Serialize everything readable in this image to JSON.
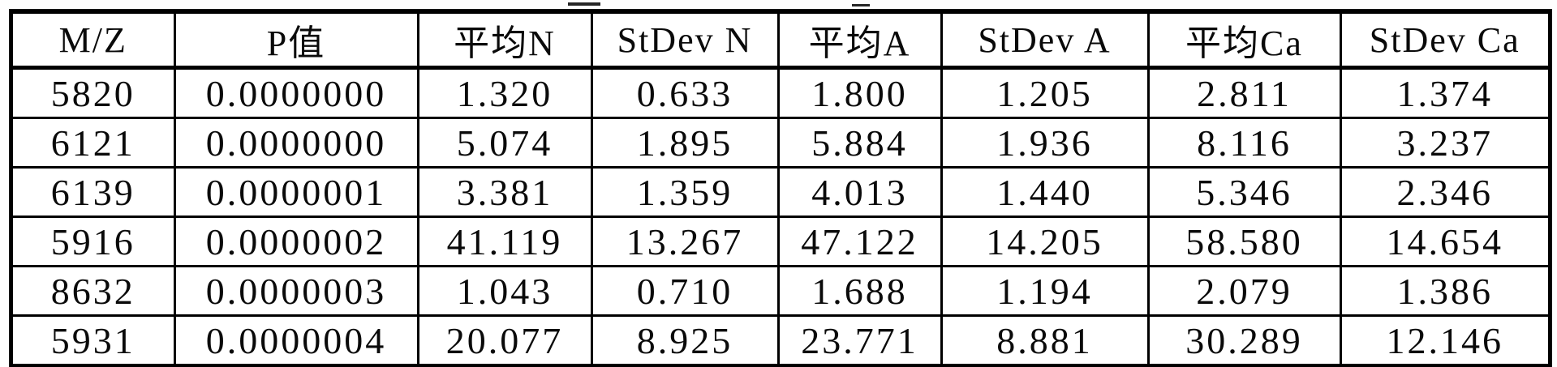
{
  "table": {
    "columns": [
      {
        "key": "mz",
        "label": "M/Z"
      },
      {
        "key": "p_value",
        "label": "P值"
      },
      {
        "key": "mean_n",
        "label": "平均N"
      },
      {
        "key": "stdev_n",
        "label": "StDev N"
      },
      {
        "key": "mean_a",
        "label": "平均A"
      },
      {
        "key": "stdev_a",
        "label": "StDev A"
      },
      {
        "key": "mean_ca",
        "label": "平均Ca"
      },
      {
        "key": "stdev_ca",
        "label": "StDev Ca"
      }
    ],
    "rows": [
      [
        "5820",
        "0.0000000",
        "1.320",
        "0.633",
        "1.800",
        "1.205",
        "2.811",
        "1.374"
      ],
      [
        "6121",
        "0.0000000",
        "5.074",
        "1.895",
        "5.884",
        "1.936",
        "8.116",
        "3.237"
      ],
      [
        "6139",
        "0.0000001",
        "3.381",
        "1.359",
        "4.013",
        "1.440",
        "5.346",
        "2.346"
      ],
      [
        "5916",
        "0.0000002",
        "41.119",
        "13.267",
        "47.122",
        "14.205",
        "58.580",
        "14.654"
      ],
      [
        "8632",
        "0.0000003",
        "1.043",
        "0.710",
        "1.688",
        "1.194",
        "2.079",
        "1.386"
      ],
      [
        "5931",
        "0.0000004",
        "20.077",
        "8.925",
        "23.771",
        "8.881",
        "30.289",
        "12.146"
      ]
    ]
  },
  "chart_data": {
    "type": "table",
    "title": "",
    "columns": [
      "M/Z",
      "P值",
      "平均N",
      "StDev N",
      "平均A",
      "StDev A",
      "平均Ca",
      "StDev Ca"
    ],
    "rows": [
      [
        5820,
        0.0,
        1.32,
        0.633,
        1.8,
        1.205,
        2.811,
        1.374
      ],
      [
        6121,
        0.0,
        5.074,
        1.895,
        5.884,
        1.936,
        8.116,
        3.237
      ],
      [
        6139,
        1e-07,
        3.381,
        1.359,
        4.013,
        1.44,
        5.346,
        2.346
      ],
      [
        5916,
        2e-07,
        41.119,
        13.267,
        47.122,
        14.205,
        58.58,
        14.654
      ],
      [
        8632,
        3e-07,
        1.043,
        0.71,
        1.688,
        1.194,
        2.079,
        1.386
      ],
      [
        5931,
        4e-07,
        20.077,
        8.925,
        23.771,
        8.881,
        30.289,
        12.146
      ]
    ]
  },
  "colors": {
    "border": "#000000",
    "text": "#0a0a0a",
    "background": "#ffffff"
  }
}
